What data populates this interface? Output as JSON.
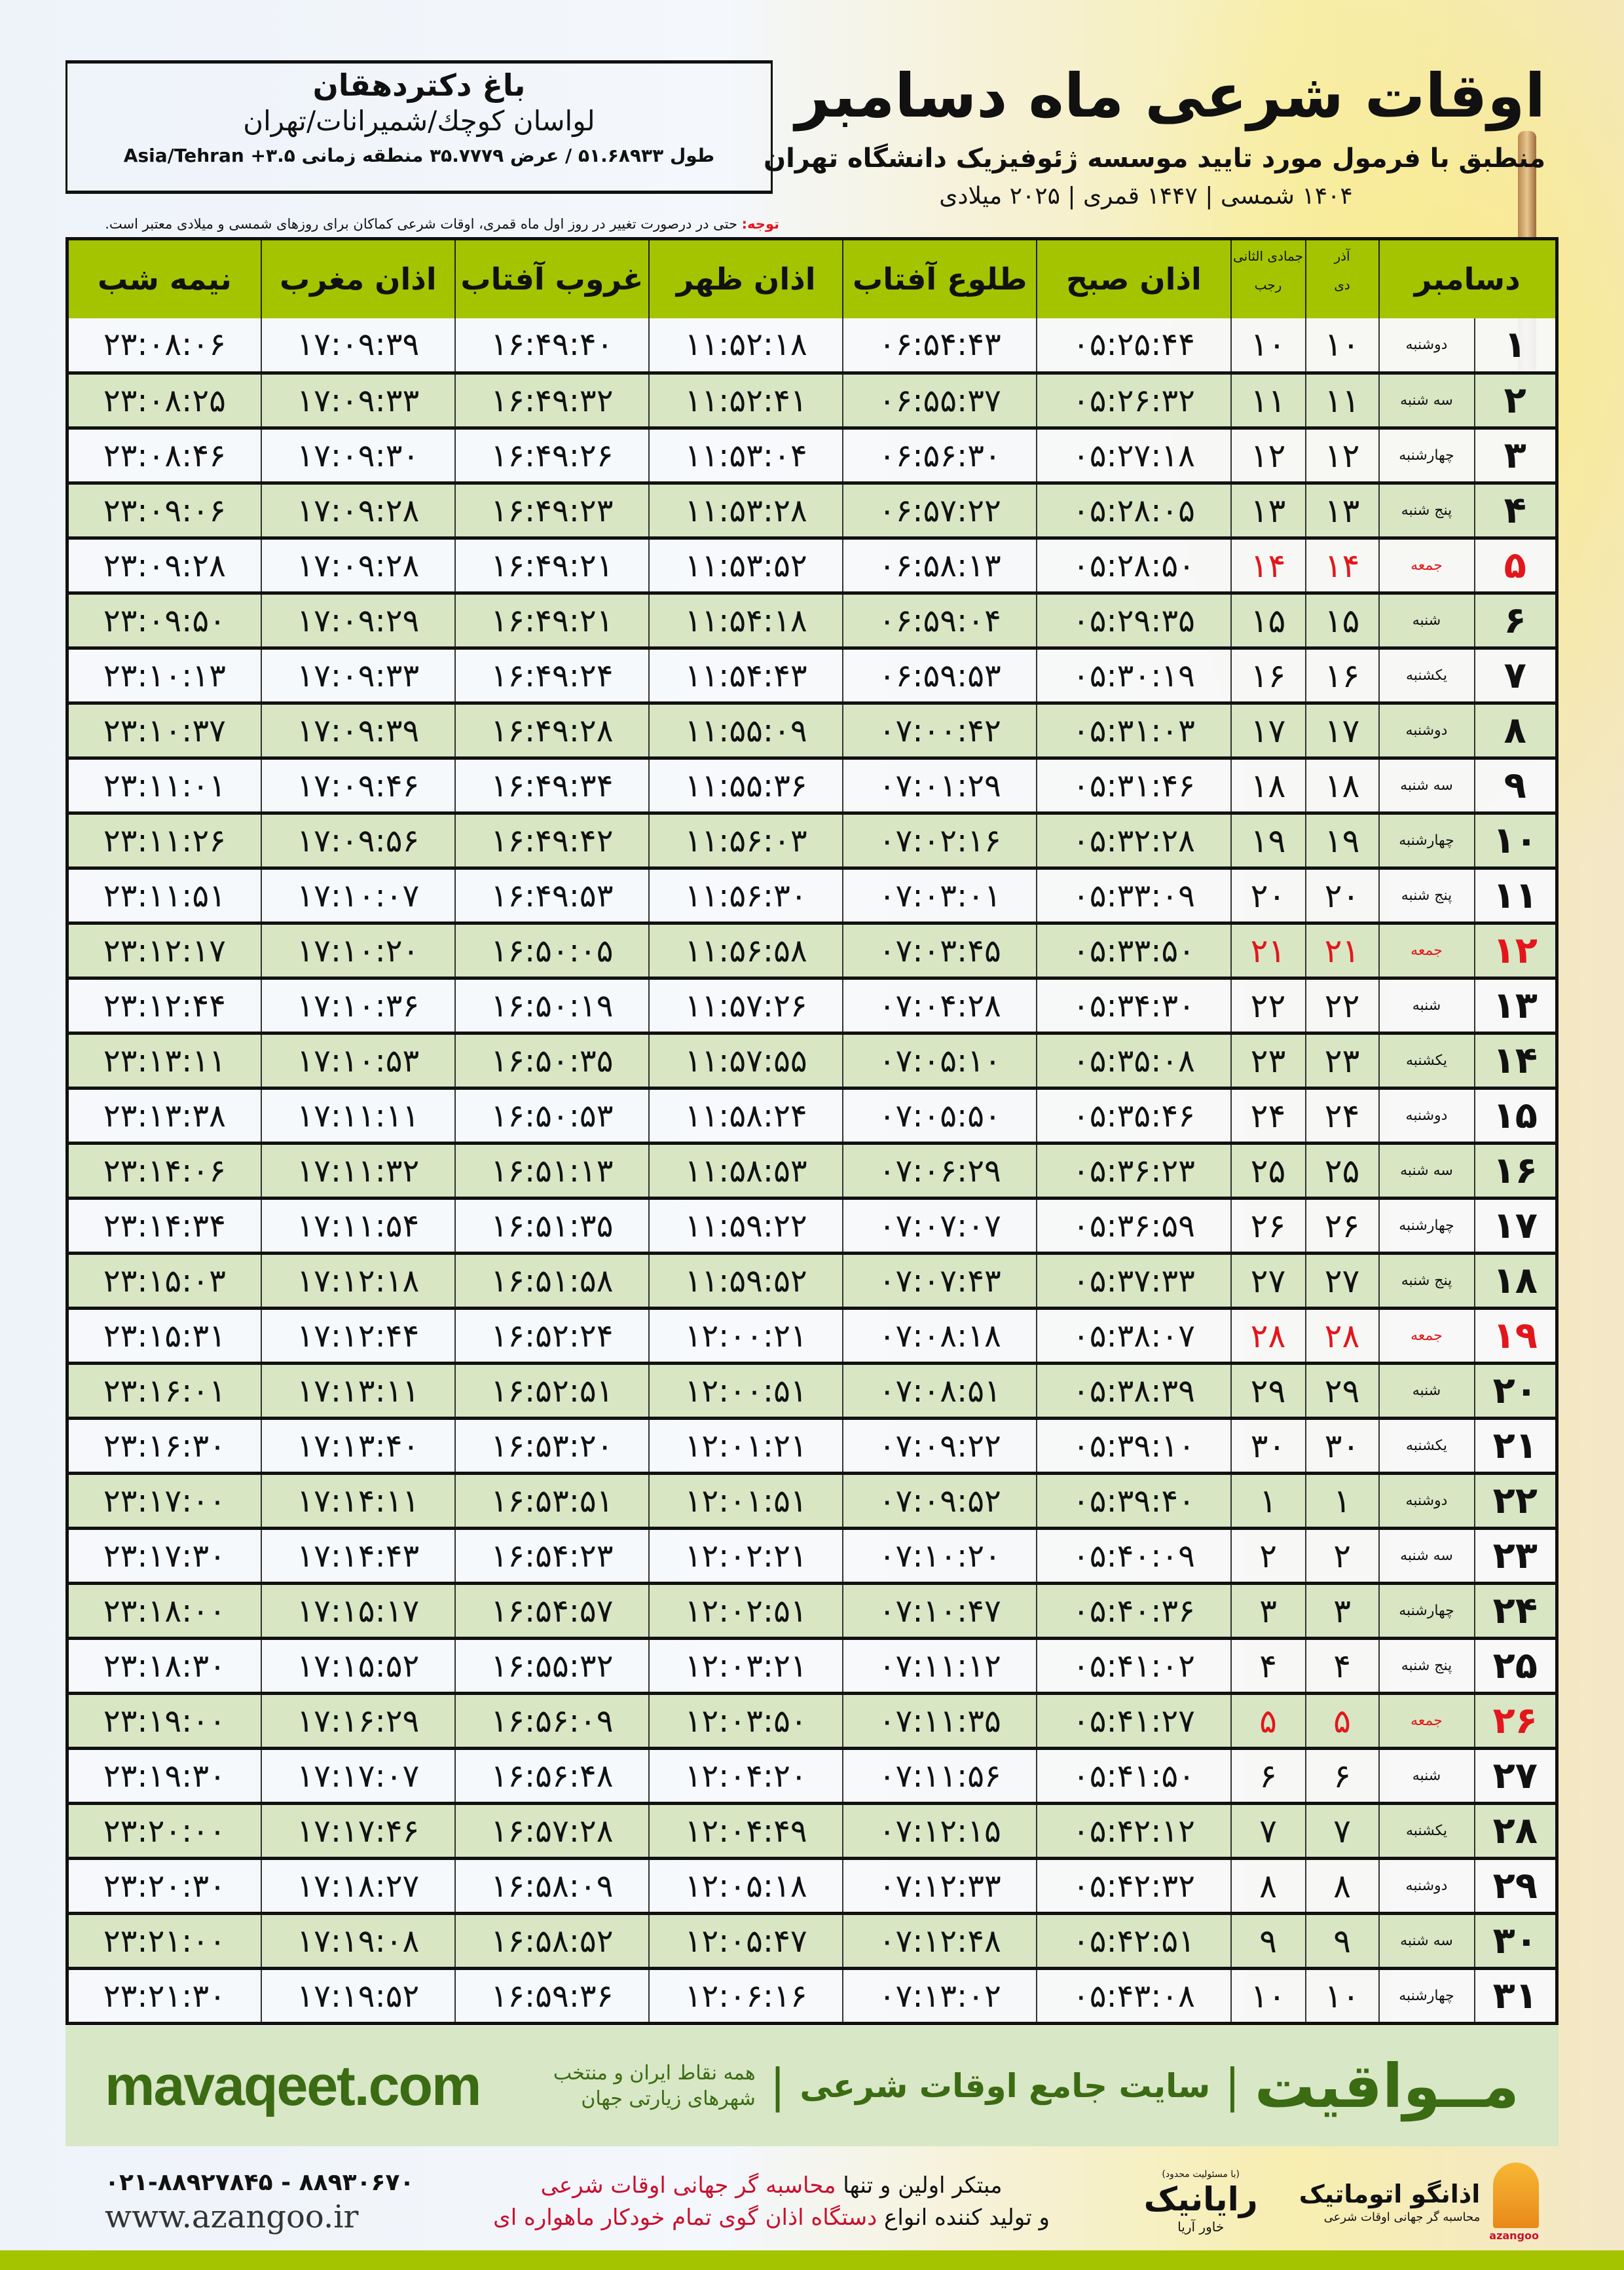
{
  "location": {
    "name": "باغ دکتردهقان",
    "region": "لواسان کوچك/شمیرانات/تهران",
    "coords": "طول ۵۱.۶۸۹۳۳ / عرض ۳۵.۷۷۷۹ منطقه زمانی Asia/Tehran +۳.۵"
  },
  "header": {
    "title": "اوقات شرعی ماه دسامبر",
    "subtitle": "منطبق با فرمول مورد تایید موسسه ژئوفیزیک دانشگاه تهران",
    "dates": "۱۴۰۴ شمسی | ۱۴۴۷ قمری | ۲۰۲۵ میلادی"
  },
  "note": {
    "label": "توجه:",
    "text": " حتی در درصورت تغییر در روز اول ماه قمری، اوقات شرعی کماکان برای روزهای شمسی و میلادی معتبر است."
  },
  "table": {
    "headers": {
      "month": "دسامبر",
      "shamsi_top": "آذر",
      "shamsi_bottom": "دی",
      "qamari_top": "جمادی الثانی",
      "qamari_bottom": "رجب",
      "fajr": "اذان صبح",
      "sunrise": "طلوع آفتاب",
      "dhuhr": "اذان ظهر",
      "sunset": "غروب آفتاب",
      "maghrib": "اذان مغرب",
      "midnight": "نیمه شب"
    },
    "friday_color": "#e3161c",
    "header_color": "#a4c400",
    "columns": [
      "day",
      "weekday",
      "shamsi",
      "qamari",
      "fajr",
      "sunrise",
      "dhuhr",
      "sunset",
      "maghrib",
      "midnight"
    ],
    "rows": [
      [
        "۱",
        "دوشنبه",
        "۱۰",
        "۱۰",
        "۰۵:۲۵:۴۴",
        "۰۶:۵۴:۴۳",
        "۱۱:۵۲:۱۸",
        "۱۶:۴۹:۴۰",
        "۱۷:۰۹:۳۹",
        "۲۳:۰۸:۰۶"
      ],
      [
        "۲",
        "سه شنبه",
        "۱۱",
        "۱۱",
        "۰۵:۲۶:۳۲",
        "۰۶:۵۵:۳۷",
        "۱۱:۵۲:۴۱",
        "۱۶:۴۹:۳۲",
        "۱۷:۰۹:۳۳",
        "۲۳:۰۸:۲۵"
      ],
      [
        "۳",
        "چهارشنبه",
        "۱۲",
        "۱۲",
        "۰۵:۲۷:۱۸",
        "۰۶:۵۶:۳۰",
        "۱۱:۵۳:۰۴",
        "۱۶:۴۹:۲۶",
        "۱۷:۰۹:۳۰",
        "۲۳:۰۸:۴۶"
      ],
      [
        "۴",
        "پنج شنبه",
        "۱۳",
        "۱۳",
        "۰۵:۲۸:۰۵",
        "۰۶:۵۷:۲۲",
        "۱۱:۵۳:۲۸",
        "۱۶:۴۹:۲۳",
        "۱۷:۰۹:۲۸",
        "۲۳:۰۹:۰۶"
      ],
      [
        "۵",
        "جمعه",
        "۱۴",
        "۱۴",
        "۰۵:۲۸:۵۰",
        "۰۶:۵۸:۱۳",
        "۱۱:۵۳:۵۲",
        "۱۶:۴۹:۲۱",
        "۱۷:۰۹:۲۸",
        "۲۳:۰۹:۲۸"
      ],
      [
        "۶",
        "شنبه",
        "۱۵",
        "۱۵",
        "۰۵:۲۹:۳۵",
        "۰۶:۵۹:۰۴",
        "۱۱:۵۴:۱۸",
        "۱۶:۴۹:۲۱",
        "۱۷:۰۹:۲۹",
        "۲۳:۰۹:۵۰"
      ],
      [
        "۷",
        "یکشنبه",
        "۱۶",
        "۱۶",
        "۰۵:۳۰:۱۹",
        "۰۶:۵۹:۵۳",
        "۱۱:۵۴:۴۳",
        "۱۶:۴۹:۲۴",
        "۱۷:۰۹:۳۳",
        "۲۳:۱۰:۱۳"
      ],
      [
        "۸",
        "دوشنبه",
        "۱۷",
        "۱۷",
        "۰۵:۳۱:۰۳",
        "۰۷:۰۰:۴۲",
        "۱۱:۵۵:۰۹",
        "۱۶:۴۹:۲۸",
        "۱۷:۰۹:۳۹",
        "۲۳:۱۰:۳۷"
      ],
      [
        "۹",
        "سه شنبه",
        "۱۸",
        "۱۸",
        "۰۵:۳۱:۴۶",
        "۰۷:۰۱:۲۹",
        "۱۱:۵۵:۳۶",
        "۱۶:۴۹:۳۴",
        "۱۷:۰۹:۴۶",
        "۲۳:۱۱:۰۱"
      ],
      [
        "۱۰",
        "چهارشنبه",
        "۱۹",
        "۱۹",
        "۰۵:۳۲:۲۸",
        "۰۷:۰۲:۱۶",
        "۱۱:۵۶:۰۳",
        "۱۶:۴۹:۴۲",
        "۱۷:۰۹:۵۶",
        "۲۳:۱۱:۲۶"
      ],
      [
        "۱۱",
        "پنج شنبه",
        "۲۰",
        "۲۰",
        "۰۵:۳۳:۰۹",
        "۰۷:۰۳:۰۱",
        "۱۱:۵۶:۳۰",
        "۱۶:۴۹:۵۳",
        "۱۷:۱۰:۰۷",
        "۲۳:۱۱:۵۱"
      ],
      [
        "۱۲",
        "جمعه",
        "۲۱",
        "۲۱",
        "۰۵:۳۳:۵۰",
        "۰۷:۰۳:۴۵",
        "۱۱:۵۶:۵۸",
        "۱۶:۵۰:۰۵",
        "۱۷:۱۰:۲۰",
        "۲۳:۱۲:۱۷"
      ],
      [
        "۱۳",
        "شنبه",
        "۲۲",
        "۲۲",
        "۰۵:۳۴:۳۰",
        "۰۷:۰۴:۲۸",
        "۱۱:۵۷:۲۶",
        "۱۶:۵۰:۱۹",
        "۱۷:۱۰:۳۶",
        "۲۳:۱۲:۴۴"
      ],
      [
        "۱۴",
        "یکشنبه",
        "۲۳",
        "۲۳",
        "۰۵:۳۵:۰۸",
        "۰۷:۰۵:۱۰",
        "۱۱:۵۷:۵۵",
        "۱۶:۵۰:۳۵",
        "۱۷:۱۰:۵۳",
        "۲۳:۱۳:۱۱"
      ],
      [
        "۱۵",
        "دوشنبه",
        "۲۴",
        "۲۴",
        "۰۵:۳۵:۴۶",
        "۰۷:۰۵:۵۰",
        "۱۱:۵۸:۲۴",
        "۱۶:۵۰:۵۳",
        "۱۷:۱۱:۱۱",
        "۲۳:۱۳:۳۸"
      ],
      [
        "۱۶",
        "سه شنبه",
        "۲۵",
        "۲۵",
        "۰۵:۳۶:۲۳",
        "۰۷:۰۶:۲۹",
        "۱۱:۵۸:۵۳",
        "۱۶:۵۱:۱۳",
        "۱۷:۱۱:۳۲",
        "۲۳:۱۴:۰۶"
      ],
      [
        "۱۷",
        "چهارشنبه",
        "۲۶",
        "۲۶",
        "۰۵:۳۶:۵۹",
        "۰۷:۰۷:۰۷",
        "۱۱:۵۹:۲۲",
        "۱۶:۵۱:۳۵",
        "۱۷:۱۱:۵۴",
        "۲۳:۱۴:۳۴"
      ],
      [
        "۱۸",
        "پنج شنبه",
        "۲۷",
        "۲۷",
        "۰۵:۳۷:۳۳",
        "۰۷:۰۷:۴۳",
        "۱۱:۵۹:۵۲",
        "۱۶:۵۱:۵۸",
        "۱۷:۱۲:۱۸",
        "۲۳:۱۵:۰۳"
      ],
      [
        "۱۹",
        "جمعه",
        "۲۸",
        "۲۸",
        "۰۵:۳۸:۰۷",
        "۰۷:۰۸:۱۸",
        "۱۲:۰۰:۲۱",
        "۱۶:۵۲:۲۴",
        "۱۷:۱۲:۴۴",
        "۲۳:۱۵:۳۱"
      ],
      [
        "۲۰",
        "شنبه",
        "۲۹",
        "۲۹",
        "۰۵:۳۸:۳۹",
        "۰۷:۰۸:۵۱",
        "۱۲:۰۰:۵۱",
        "۱۶:۵۲:۵۱",
        "۱۷:۱۳:۱۱",
        "۲۳:۱۶:۰۱"
      ],
      [
        "۲۱",
        "یکشنبه",
        "۳۰",
        "۳۰",
        "۰۵:۳۹:۱۰",
        "۰۷:۰۹:۲۲",
        "۱۲:۰۱:۲۱",
        "۱۶:۵۳:۲۰",
        "۱۷:۱۳:۴۰",
        "۲۳:۱۶:۳۰"
      ],
      [
        "۲۲",
        "دوشنبه",
        "۱",
        "۱",
        "۰۵:۳۹:۴۰",
        "۰۷:۰۹:۵۲",
        "۱۲:۰۱:۵۱",
        "۱۶:۵۳:۵۱",
        "۱۷:۱۴:۱۱",
        "۲۳:۱۷:۰۰"
      ],
      [
        "۲۳",
        "سه شنبه",
        "۲",
        "۲",
        "۰۵:۴۰:۰۹",
        "۰۷:۱۰:۲۰",
        "۱۲:۰۲:۲۱",
        "۱۶:۵۴:۲۳",
        "۱۷:۱۴:۴۳",
        "۲۳:۱۷:۳۰"
      ],
      [
        "۲۴",
        "چهارشنبه",
        "۳",
        "۳",
        "۰۵:۴۰:۳۶",
        "۰۷:۱۰:۴۷",
        "۱۲:۰۲:۵۱",
        "۱۶:۵۴:۵۷",
        "۱۷:۱۵:۱۷",
        "۲۳:۱۸:۰۰"
      ],
      [
        "۲۵",
        "پنج شنبه",
        "۴",
        "۴",
        "۰۵:۴۱:۰۲",
        "۰۷:۱۱:۱۲",
        "۱۲:۰۳:۲۱",
        "۱۶:۵۵:۳۲",
        "۱۷:۱۵:۵۲",
        "۲۳:۱۸:۳۰"
      ],
      [
        "۲۶",
        "جمعه",
        "۵",
        "۵",
        "۰۵:۴۱:۲۷",
        "۰۷:۱۱:۳۵",
        "۱۲:۰۳:۵۰",
        "۱۶:۵۶:۰۹",
        "۱۷:۱۶:۲۹",
        "۲۳:۱۹:۰۰"
      ],
      [
        "۲۷",
        "شنبه",
        "۶",
        "۶",
        "۰۵:۴۱:۵۰",
        "۰۷:۱۱:۵۶",
        "۱۲:۰۴:۲۰",
        "۱۶:۵۶:۴۸",
        "۱۷:۱۷:۰۷",
        "۲۳:۱۹:۳۰"
      ],
      [
        "۲۸",
        "یکشنبه",
        "۷",
        "۷",
        "۰۵:۴۲:۱۲",
        "۰۷:۱۲:۱۵",
        "۱۲:۰۴:۴۹",
        "۱۶:۵۷:۲۸",
        "۱۷:۱۷:۴۶",
        "۲۳:۲۰:۰۰"
      ],
      [
        "۲۹",
        "دوشنبه",
        "۸",
        "۸",
        "۰۵:۴۲:۳۲",
        "۰۷:۱۲:۳۳",
        "۱۲:۰۵:۱۸",
        "۱۶:۵۸:۰۹",
        "۱۷:۱۸:۲۷",
        "۲۳:۲۰:۳۰"
      ],
      [
        "۳۰",
        "سه شنبه",
        "۹",
        "۹",
        "۰۵:۴۲:۵۱",
        "۰۷:۱۲:۴۸",
        "۱۲:۰۵:۴۷",
        "۱۶:۵۸:۵۲",
        "۱۷:۱۹:۰۸",
        "۲۳:۲۱:۰۰"
      ],
      [
        "۳۱",
        "چهارشنبه",
        "۱۰",
        "۱۰",
        "۰۵:۴۳:۰۸",
        "۰۷:۱۳:۰۲",
        "۱۲:۰۶:۱۶",
        "۱۶:۵۹:۳۶",
        "۱۷:۱۹:۵۲",
        "۲۳:۲۱:۳۰"
      ]
    ]
  },
  "banner": {
    "brand": "مــواقیت",
    "separator": "|",
    "site": "سایت جامع اوقات شرعی",
    "tagline": "همه نقاط ایران و منتخب شهرهای زیارتی جهان",
    "url": "mavaqeet.com",
    "color": "#3b6b12"
  },
  "footer": {
    "phone": "۰۲۱-۸۸۹۲۷۸۴۵ - ۸۸۹۳۰۶۷۰",
    "website": "www.azangoo.ir",
    "line1_plain": "مبتکر اولین و تنها ",
    "line1_red": "محاسبه گر جهانی اوقات شرعی",
    "line2_plain": "و تولید کننده انواع ",
    "line2_red": "دستگاه اذان گوی تمام خودکار ماهواره ای",
    "rayanik": {
      "note": "(با مسئولیت محدود)",
      "name": "رایانیک",
      "sub": "خاور آریا"
    },
    "azangoo": {
      "name": "اذانگو اتوماتیک",
      "sub": "محاسبه گر جهانی اوقات شرعی",
      "en": "azangoo"
    }
  }
}
